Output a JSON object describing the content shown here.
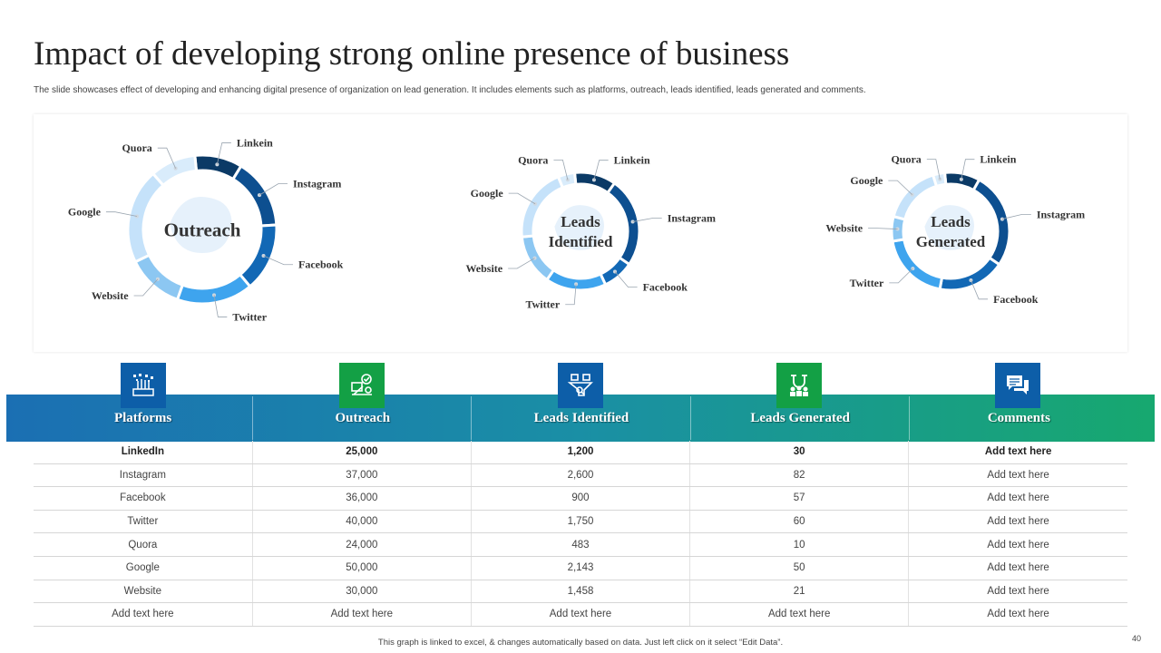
{
  "title": "Impact of developing strong online presence of business",
  "subtitle": "The slide showcases effect of developing and enhancing digital presence of organization on lead generation. It includes elements such as platforms, outreach, leads identified, leads generated and comments.",
  "chart_data": [
    {
      "type": "pie",
      "center_label": [
        "Outreach"
      ],
      "categories": [
        "Linkein",
        "Instagram",
        "Facebook",
        "Twitter",
        "Website",
        "Google",
        "Quora"
      ],
      "values": [
        25000,
        37000,
        36000,
        40000,
        30000,
        50000,
        24000
      ],
      "colors": [
        "#0b3a66",
        "#0d4f90",
        "#1268b5",
        "#3ea4ee",
        "#8cc7f2",
        "#c5e2fa",
        "#d9ecfb"
      ]
    },
    {
      "type": "pie",
      "center_label": [
        "Leads",
        "Identified"
      ],
      "categories": [
        "Linkein",
        "Instagram",
        "Facebook",
        "Twitter",
        "Website",
        "Google",
        "Quora"
      ],
      "values": [
        1200,
        2600,
        900,
        1750,
        1458,
        2143,
        483
      ],
      "colors": [
        "#0b3a66",
        "#0d4f90",
        "#1268b5",
        "#3ea4ee",
        "#8cc7f2",
        "#c5e2fa",
        "#d9ecfb"
      ]
    },
    {
      "type": "pie",
      "center_label": [
        "Leads",
        "Generated"
      ],
      "categories": [
        "Linkein",
        "Instagram",
        "Facebook",
        "Twitter",
        "Website",
        "Google",
        "Quora"
      ],
      "values": [
        30,
        82,
        57,
        60,
        21,
        50,
        10
      ],
      "colors": [
        "#0b3a66",
        "#0d4f90",
        "#1268b5",
        "#3ea4ee",
        "#8cc7f2",
        "#c5e2fa",
        "#d9ecfb"
      ]
    }
  ],
  "table": {
    "columns": [
      {
        "label": "Platforms",
        "icon": "platforms-icon",
        "icon_bg": "#0d5ea8"
      },
      {
        "label": "Outreach",
        "icon": "outreach-icon",
        "icon_bg": "#13a045"
      },
      {
        "label": "Leads Identified",
        "icon": "leads-identified-icon",
        "icon_bg": "#0d5ea8"
      },
      {
        "label": "Leads Generated",
        "icon": "leads-generated-icon",
        "icon_bg": "#13a045"
      },
      {
        "label": "Comments",
        "icon": "comments-icon",
        "icon_bg": "#0d5ea8"
      }
    ],
    "rows": [
      [
        "LinkedIn",
        "25,000",
        "1,200",
        "30",
        "Add text here"
      ],
      [
        "Instagram",
        "37,000",
        "2,600",
        "82",
        "Add text here"
      ],
      [
        "Facebook",
        "36,000",
        "900",
        "57",
        "Add text here"
      ],
      [
        "Twitter",
        "40,000",
        "1,750",
        "60",
        "Add text here"
      ],
      [
        "Quora",
        "24,000",
        "483",
        "10",
        "Add text here"
      ],
      [
        "Google",
        "50,000",
        "2,143",
        "50",
        "Add text here"
      ],
      [
        "Website",
        "30,000",
        "1,458",
        "21",
        "Add text here"
      ],
      [
        "Add text here",
        "Add text here",
        "Add text here",
        "Add text here",
        "Add text here"
      ]
    ]
  },
  "footnote": "This graph is linked to excel, & changes automatically based on data. Just left click on it select “Edit Data”.",
  "page_number": "40"
}
